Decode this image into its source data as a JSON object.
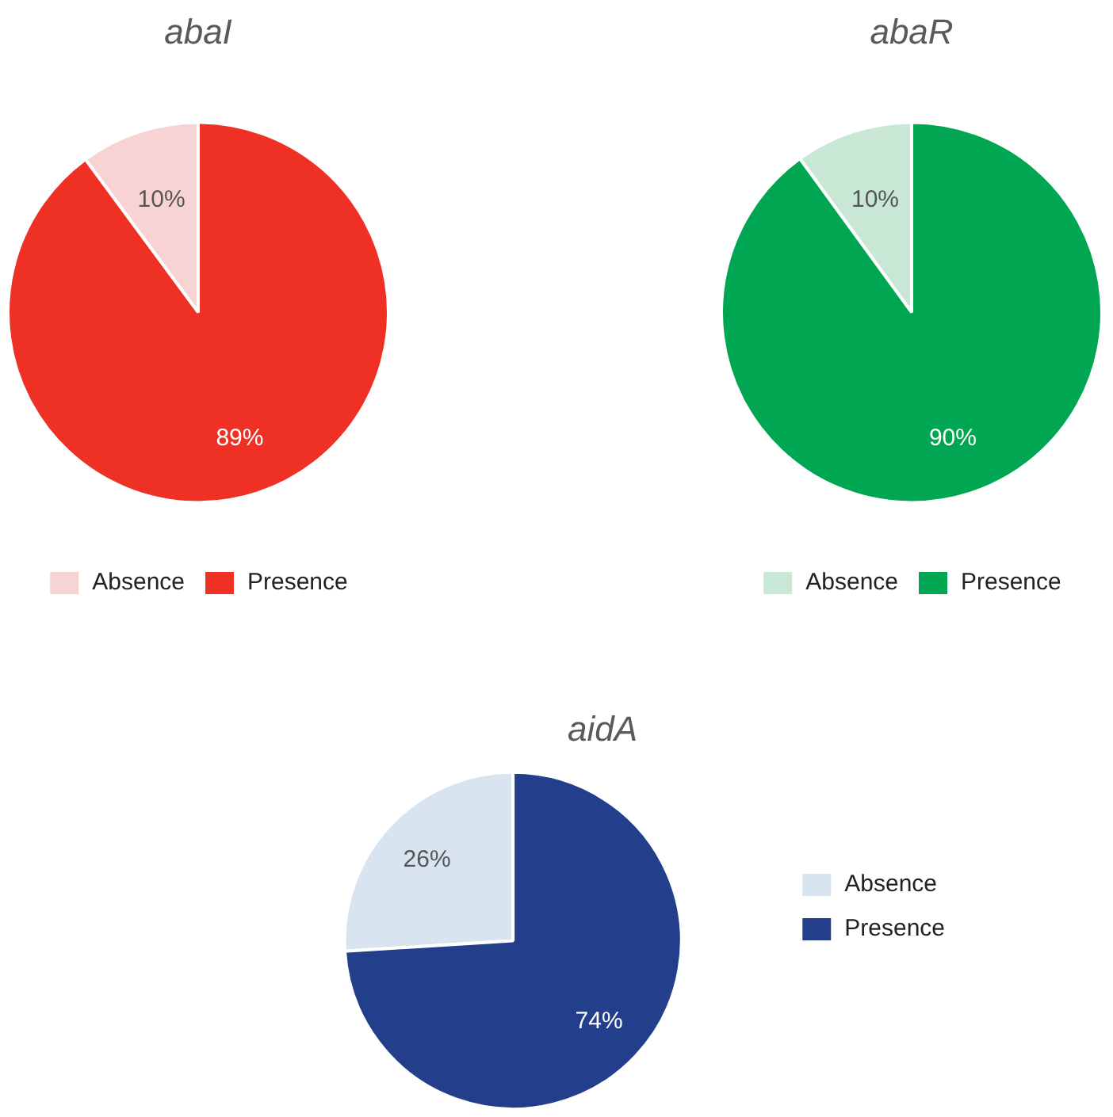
{
  "chart_data": [
    {
      "type": "pie",
      "title": "abaI",
      "categories": [
        "Absence",
        "Presence"
      ],
      "values": [
        10,
        89
      ],
      "value_labels": [
        "10%",
        "89%"
      ],
      "colors": [
        "#f8d3d3",
        "#ee3124"
      ],
      "legend": "bottom"
    },
    {
      "type": "pie",
      "title": "abaR",
      "categories": [
        "Absence",
        "Presence"
      ],
      "values": [
        10,
        90
      ],
      "value_labels": [
        "10%",
        "90%"
      ],
      "colors": [
        "#c9e7d5",
        "#00a651"
      ],
      "legend": "bottom"
    },
    {
      "type": "pie",
      "title": "aidA",
      "categories": [
        "Absence",
        "Presence"
      ],
      "values": [
        26,
        74
      ],
      "value_labels": [
        "26%",
        "74%"
      ],
      "colors": [
        "#d8e5f0",
        "#233f8c"
      ],
      "legend": "right"
    }
  ]
}
